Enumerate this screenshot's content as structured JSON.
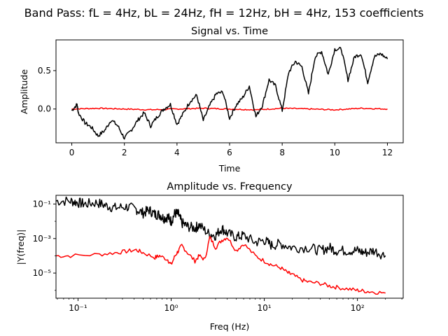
{
  "figure": {
    "suptitle": "Band Pass: fL = 4Hz, bL = 24Hz, fH = 12Hz, bH = 4Hz, 153 coefficients"
  },
  "colors": {
    "signal": "#000000",
    "filtered": "#ff0000"
  },
  "chart_data": [
    {
      "type": "line",
      "title": "Signal vs. Time",
      "xlabel": "Time",
      "ylabel": "Amplitude",
      "xlim": [
        -0.6,
        12.6
      ],
      "ylim": [
        -0.44,
        0.9
      ],
      "xticks": [
        0,
        2,
        4,
        6,
        8,
        10,
        12
      ],
      "xtick_labels": [
        "0",
        "2",
        "4",
        "6",
        "8",
        "10",
        "12"
      ],
      "yticks": [
        0.0,
        0.5
      ],
      "ytick_labels": [
        "0.0",
        "0.5"
      ],
      "grid": false,
      "series": [
        {
          "role": "original",
          "color": "#000000",
          "x": [
            0,
            0.2,
            0.25,
            0.5,
            0.75,
            1.0,
            1.25,
            1.5,
            1.75,
            2.0,
            2.25,
            2.5,
            2.75,
            3.0,
            3.25,
            3.5,
            3.75,
            4.0,
            4.25,
            4.5,
            4.75,
            5.0,
            5.25,
            5.5,
            5.75,
            6.0,
            6.25,
            6.5,
            6.75,
            7.0,
            7.25,
            7.5,
            7.75,
            8.0,
            8.25,
            8.5,
            8.75,
            9.0,
            9.25,
            9.5,
            9.75,
            10.0,
            10.25,
            10.5,
            10.75,
            11.0,
            11.25,
            11.5,
            11.75,
            12.0
          ],
          "y": [
            -0.02,
            0.06,
            -0.05,
            -0.18,
            -0.24,
            -0.35,
            -0.28,
            -0.14,
            -0.22,
            -0.38,
            -0.28,
            -0.15,
            -0.05,
            -0.22,
            -0.1,
            0.0,
            0.06,
            -0.2,
            -0.05,
            0.1,
            0.18,
            -0.15,
            0.05,
            0.2,
            0.22,
            -0.12,
            0.05,
            0.15,
            0.3,
            -0.1,
            0.05,
            0.38,
            0.3,
            -0.02,
            0.48,
            0.62,
            0.55,
            0.2,
            0.68,
            0.75,
            0.45,
            0.78,
            0.78,
            0.38,
            0.68,
            0.72,
            0.35,
            0.68,
            0.72,
            0.65
          ]
        },
        {
          "role": "band-pass filtered",
          "color": "#ff0000",
          "x": [
            0,
            1,
            2,
            3,
            4,
            5,
            6,
            7,
            8,
            9,
            10,
            11,
            12
          ],
          "y": [
            0.0,
            0.01,
            0.0,
            -0.01,
            0.0,
            0.01,
            0.0,
            -0.01,
            0.01,
            0.0,
            -0.01,
            0.01,
            0.0
          ]
        }
      ]
    },
    {
      "type": "line",
      "title": "Amplitude vs. Frequency",
      "xlabel": "Freq (Hz)",
      "ylabel": "|Y(freq)|",
      "xscale": "log",
      "yscale": "log",
      "xlim": [
        0.058,
        310
      ],
      "ylim": [
        3.5e-07,
        0.32
      ],
      "xticks": [
        0.1,
        1,
        10,
        100
      ],
      "xtick_labels": [
        "10⁻¹",
        "10⁰",
        "10¹",
        "10²"
      ],
      "yticks": [
        1e-05,
        0.001,
        0.1
      ],
      "ytick_labels": [
        "10⁻⁵",
        "10⁻³",
        "10⁻¹"
      ],
      "grid": false,
      "series": [
        {
          "role": "original",
          "color": "#000000",
          "x": [
            0.058,
            0.083,
            0.1,
            0.12,
            0.16,
            0.2,
            0.25,
            0.33,
            0.42,
            0.5,
            0.58,
            0.67,
            0.75,
            0.83,
            0.92,
            1.0,
            1.1,
            1.2,
            1.3,
            1.5,
            1.8,
            2.0,
            2.5,
            3.0,
            3.5,
            4.0,
            5.0,
            6.0,
            8.0,
            10,
            12,
            15,
            20,
            30,
            40,
            50,
            60,
            80,
            100,
            120,
            150,
            200
          ],
          "y": [
            0.15,
            0.15,
            0.12,
            0.1,
            0.12,
            0.08,
            0.06,
            0.07,
            0.05,
            0.03,
            0.045,
            0.025,
            0.025,
            0.015,
            0.018,
            0.01,
            0.03,
            0.025,
            0.008,
            0.005,
            0.004,
            0.006,
            0.002,
            0.0015,
            0.004,
            0.002,
            0.0012,
            0.0015,
            0.0006,
            0.0008,
            0.0004,
            0.0005,
            0.0003,
            0.0003,
            0.0002,
            0.0003,
            0.0002,
            0.0002,
            0.0002,
            0.00015,
            0.0002,
            0.0001
          ]
        },
        {
          "role": "band-pass filtered",
          "color": "#ff0000",
          "x": [
            0.058,
            0.083,
            0.17,
            0.25,
            0.33,
            0.42,
            0.5,
            0.67,
            0.75,
            0.92,
            1.0,
            1.1,
            1.2,
            1.3,
            1.5,
            1.8,
            2.0,
            2.3,
            2.6,
            3.0,
            3.5,
            4.0,
            5.0,
            6.0,
            8.0,
            10,
            12,
            15,
            18,
            20,
            25,
            30,
            40,
            50,
            60,
            80,
            100,
            120,
            150,
            200
          ],
          "y": [
            0.0001,
            0.0001,
            0.00012,
            0.00015,
            0.00018,
            0.00022,
            0.00015,
            8e-05,
            0.0001,
            6e-05,
            3e-05,
            0.0001,
            0.0002,
            0.0004,
            0.00015,
            5e-05,
            0.0001,
            6e-05,
            0.0012,
            0.0003,
            0.0008,
            0.0012,
            0.0002,
            0.0005,
            0.0001,
            5e-05,
            3e-05,
            2e-05,
            1e-05,
            8e-06,
            4e-06,
            3e-06,
            2.5e-06,
            1.8e-06,
            1.5e-06,
            1.2e-06,
            1e-06,
            9e-07,
            8e-07,
            7e-07
          ]
        }
      ]
    }
  ]
}
